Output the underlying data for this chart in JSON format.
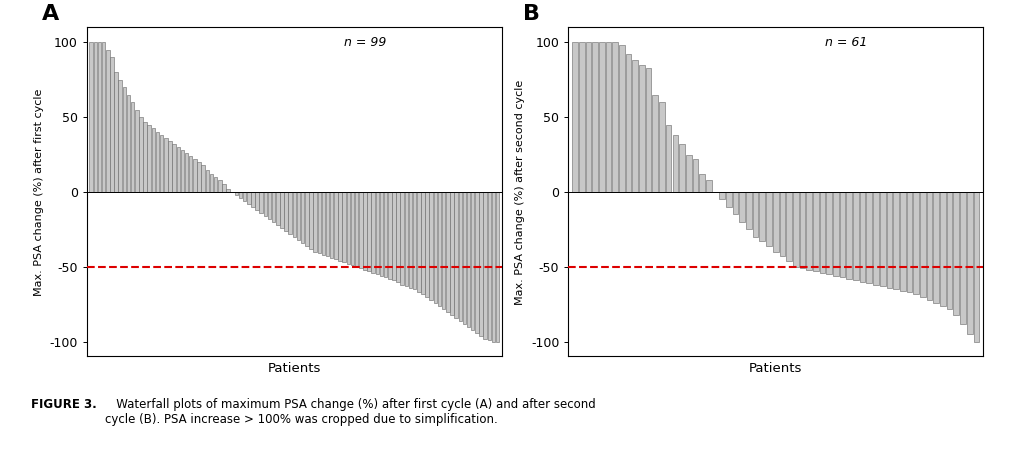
{
  "panel_A": {
    "n": 99,
    "label": "n = 99",
    "ylabel": "Max. PSA change (%) after first cycle",
    "xlabel": "Patients",
    "panel_letter": "A",
    "values": [
      100,
      100,
      100,
      100,
      95,
      90,
      80,
      75,
      70,
      65,
      60,
      55,
      50,
      47,
      45,
      43,
      40,
      38,
      36,
      34,
      32,
      30,
      28,
      26,
      24,
      22,
      20,
      18,
      15,
      12,
      10,
      8,
      5,
      2,
      0,
      -2,
      -4,
      -6,
      -8,
      -10,
      -12,
      -14,
      -16,
      -18,
      -20,
      -22,
      -24,
      -26,
      -28,
      -30,
      -32,
      -34,
      -36,
      -38,
      -40,
      -41,
      -42,
      -43,
      -44,
      -45,
      -46,
      -47,
      -48,
      -49,
      -50,
      -51,
      -52,
      -53,
      -54,
      -55,
      -56,
      -57,
      -58,
      -59,
      -60,
      -62,
      -63,
      -64,
      -65,
      -67,
      -68,
      -70,
      -72,
      -74,
      -76,
      -78,
      -80,
      -82,
      -84,
      -86,
      -88,
      -90,
      -92,
      -94,
      -96,
      -98,
      -99,
      -100,
      -100
    ]
  },
  "panel_B": {
    "n": 61,
    "label": "n = 61",
    "ylabel": "Max. PSA change (%) after second cycle",
    "xlabel": "Patients",
    "panel_letter": "B",
    "values": [
      100,
      100,
      100,
      100,
      100,
      100,
      100,
      98,
      92,
      88,
      85,
      83,
      65,
      60,
      45,
      38,
      32,
      25,
      22,
      12,
      8,
      0,
      -5,
      -10,
      -15,
      -20,
      -25,
      -30,
      -33,
      -36,
      -40,
      -43,
      -46,
      -50,
      -51,
      -52,
      -53,
      -54,
      -55,
      -56,
      -57,
      -58,
      -59,
      -60,
      -61,
      -62,
      -63,
      -64,
      -65,
      -66,
      -67,
      -68,
      -70,
      -72,
      -74,
      -76,
      -78,
      -82,
      -88,
      -95,
      -100
    ]
  },
  "bar_facecolor": "#c8c8c8",
  "bar_edgecolor": "#666666",
  "dashed_line_color": "#dd0000",
  "dashed_line_y": -50,
  "ylim": [
    -110,
    110
  ],
  "yticks": [
    -100,
    -50,
    0,
    50,
    100
  ],
  "background_color": "#ffffff",
  "caption_bold": "FIGURE 3.",
  "caption_normal": "   Waterfall plots of maximum PSA change (%) after first cycle (A) and after second\ncycle (B). PSA increase > 100% was cropped due to simplification."
}
